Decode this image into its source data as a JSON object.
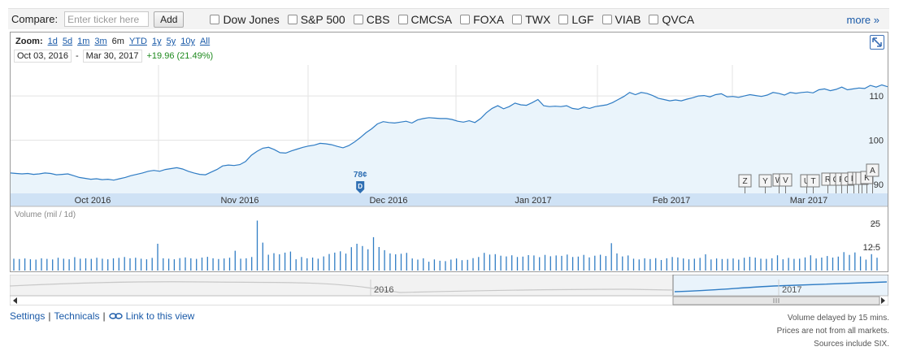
{
  "compare": {
    "label": "Compare:",
    "placeholder": "Enter ticker here",
    "add_label": "Add",
    "tickers": [
      "Dow Jones",
      "S&P 500",
      "CBS",
      "CMCSA",
      "FOXA",
      "TWX",
      "LGF",
      "VIAB",
      "QVCA"
    ],
    "more_label": "more »"
  },
  "zoom": {
    "label": "Zoom:",
    "options": [
      "1d",
      "5d",
      "1m",
      "3m",
      "6m",
      "YTD",
      "1y",
      "5y",
      "10y",
      "All"
    ],
    "active": "6m"
  },
  "range": {
    "start": "Oct 03, 2016",
    "separator": "-",
    "end": "Mar 30, 2017",
    "change": "+19.96 (21.49%)"
  },
  "colors": {
    "line": "#2f7cc4",
    "fill": "#eaf4fb",
    "axis_band": "#cfe2f5",
    "volume": "#2f7cc4",
    "positive": "#1f8a1f",
    "link": "#1a5aa8"
  },
  "chart_data": [
    {
      "type": "area",
      "x_ticks": [
        "Oct 2016",
        "Nov 2016",
        "Dec 2016",
        "Jan 2017",
        "Feb 2017",
        "Mar 2017"
      ],
      "y_ticks": [
        90,
        100,
        110
      ],
      "ylim": [
        88,
        117
      ],
      "dividend": {
        "label": "78¢",
        "marker": "D",
        "date_index": 61
      },
      "news_flags": [
        "Z",
        "Y",
        "W",
        "V",
        "U",
        "T",
        "R",
        "Q",
        "P",
        "O",
        "N",
        "M",
        "L",
        "K",
        "A"
      ],
      "values": [
        92.6,
        92.5,
        92.4,
        92.5,
        92.3,
        92.4,
        92.6,
        92.5,
        92.2,
        92.3,
        92.4,
        92.0,
        91.6,
        91.4,
        91.2,
        91.3,
        91.1,
        91.2,
        91.0,
        91.3,
        91.6,
        92.0,
        92.3,
        92.6,
        93.0,
        93.2,
        93.0,
        93.4,
        93.6,
        93.8,
        93.5,
        93.0,
        92.6,
        92.3,
        92.2,
        92.8,
        93.4,
        94.2,
        94.4,
        94.3,
        94.5,
        95.2,
        96.6,
        97.5,
        98.2,
        98.4,
        97.9,
        97.2,
        97.1,
        97.6,
        98.0,
        98.4,
        98.7,
        98.9,
        99.3,
        99.2,
        99.0,
        98.6,
        98.3,
        98.8,
        99.6,
        100.6,
        101.7,
        102.6,
        103.7,
        104.2,
        104.0,
        103.9,
        104.1,
        104.3,
        103.9,
        104.6,
        104.9,
        105.1,
        105.0,
        104.9,
        104.9,
        104.7,
        104.3,
        104.1,
        104.4,
        104.0,
        104.9,
        106.2,
        107.2,
        107.8,
        107.1,
        107.6,
        108.4,
        108.0,
        107.9,
        108.5,
        109.2,
        107.8,
        107.6,
        107.7,
        107.6,
        107.8,
        107.2,
        107.0,
        107.5,
        107.2,
        107.6,
        107.8,
        108.0,
        108.5,
        109.2,
        109.9,
        110.8,
        110.3,
        110.8,
        110.6,
        110.1,
        109.5,
        109.2,
        108.9,
        109.1,
        108.9,
        109.3,
        109.6,
        110.0,
        110.1,
        109.8,
        110.3,
        110.5,
        109.8,
        109.9,
        109.7,
        110.0,
        110.3,
        110.1,
        109.9,
        110.2,
        110.8,
        110.6,
        110.2,
        110.8,
        110.6,
        110.8,
        110.9,
        110.7,
        111.4,
        111.6,
        111.2,
        111.5,
        112.0,
        111.4,
        111.6,
        111.8,
        111.7,
        112.4,
        112.0,
        112.5,
        112.1
      ],
      "ylabel": ""
    },
    {
      "type": "bar",
      "title": "Volume (mil / 1d)",
      "y_ticks": [
        12.5,
        25
      ],
      "ylim": [
        0,
        28
      ],
      "values": [
        6.3,
        6.1,
        6.4,
        6.0,
        5.8,
        6.5,
        6.2,
        5.9,
        6.8,
        6.3,
        6.0,
        7.1,
        6.3,
        6.5,
        6.2,
        6.8,
        6.3,
        6.0,
        6.5,
        6.7,
        7.2,
        6.5,
        6.8,
        6.3,
        6.0,
        6.7,
        14.2,
        6.5,
        6.3,
        6.0,
        6.6,
        7.0,
        6.5,
        6.2,
        6.9,
        7.3,
        6.5,
        6.1,
        6.4,
        6.8,
        10.5,
        6.3,
        6.5,
        7.2,
        26.5,
        14.8,
        8.4,
        9.2,
        8.6,
        9.5,
        10.1,
        6.0,
        7.2,
        6.5,
        6.9,
        6.3,
        7.5,
        8.8,
        9.5,
        10.2,
        9.0,
        12.4,
        14.2,
        13.0,
        11.3,
        17.7,
        12.5,
        10.8,
        9.1,
        8.6,
        8.9,
        9.4,
        6.4,
        5.8,
        6.5,
        4.7,
        5.9,
        5.2,
        5.0,
        5.8,
        6.4,
        5.5,
        5.7,
        6.6,
        7.2,
        9.4,
        8.5,
        8.7,
        7.9,
        7.5,
        8.1,
        7.2,
        7.4,
        8.2,
        8.0,
        7.1,
        8.3,
        7.6,
        8.0,
        7.8,
        8.5,
        7.2,
        7.4,
        8.3,
        7.0,
        7.9,
        8.4,
        7.7,
        14.5,
        9.1,
        7.5,
        8.0,
        6.3,
        5.9,
        6.5,
        6.1,
        6.6,
        5.6,
        6.5,
        7.2,
        7.0,
        6.4,
        6.0,
        6.3,
        6.7,
        8.6,
        5.9,
        6.4,
        6.1,
        6.2,
        6.4,
        5.8,
        6.8,
        7.3,
        6.9,
        6.3,
        6.2,
        6.5,
        8.1,
        6.0,
        6.7,
        6.2,
        6.3,
        7.0,
        8.1,
        6.4,
        6.9,
        7.7,
        6.9,
        7.4,
        9.8,
        8.3,
        9.6,
        7.5,
        5.8,
        8.7,
        6.8
      ]
    }
  ],
  "navigator": {
    "year_labels": [
      "2016",
      "2017"
    ]
  },
  "footer": {
    "settings": "Settings",
    "sep": "|",
    "technicals": "Technicals",
    "link_view": "Link to this view",
    "disclaimer": [
      "Volume delayed by 15 mins.",
      "Prices are not from all markets.",
      "Sources include SIX."
    ]
  }
}
